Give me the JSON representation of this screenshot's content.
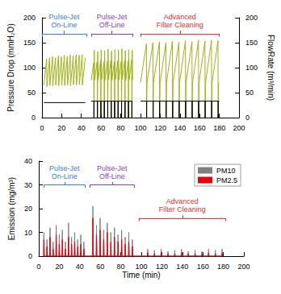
{
  "chart_data": [
    {
      "type": "line",
      "ylabel": "Pressure Drop (mmH₂O)",
      "y2label": "FlowRate (m³/min)",
      "xlim": [
        0,
        200
      ],
      "xticks": [
        0,
        20,
        40,
        60,
        80,
        100,
        120,
        140,
        160,
        180,
        200
      ],
      "ylim": [
        0,
        200
      ],
      "yticks": [
        0,
        50,
        100,
        150,
        200
      ],
      "y2lim": [
        0,
        200
      ],
      "y2ticks": [
        0,
        50,
        100,
        150,
        200
      ],
      "grid": false,
      "annotations": [
        {
          "text": "Pulse-Jet\nOn-Line",
          "x": [
            0,
            45
          ],
          "y": 168,
          "color": "#3b7dd8"
        },
        {
          "text": "Pulse-Jet\nOff-Line",
          "x": [
            50,
            92
          ],
          "y": 168,
          "color": "#8a3fb0"
        },
        {
          "text": "Advanced\nFilter Cleaning",
          "x": [
            100,
            180
          ],
          "y": 168,
          "color": "#e03030"
        }
      ],
      "series": [
        {
          "color": "#9fb21a",
          "marker": "none",
          "line_style": "solid",
          "x": [
            2,
            4.8,
            5,
            7.8,
            8,
            10.8,
            11,
            13.8,
            14,
            16.8,
            17,
            19.8,
            20,
            22.8,
            23,
            25.8,
            26,
            28.8,
            29,
            31.8,
            32,
            34.8,
            35,
            37.8,
            38,
            40.8,
            41,
            44,
            47,
            50,
            52.5,
            52.8,
            53.1,
            53.5,
            56,
            56.3,
            56.6,
            57,
            59.5,
            59.8,
            60.1,
            60.5,
            63,
            63.3,
            63.6,
            64,
            66.5,
            66.8,
            67.1,
            67.5,
            70,
            70.3,
            70.6,
            71,
            73.5,
            73.8,
            74.1,
            74.5,
            77,
            77.3,
            77.6,
            78,
            80.5,
            80.8,
            81.1,
            81.5,
            84,
            84.3,
            84.6,
            85,
            87.5,
            87.8,
            88.1,
            88.5,
            91,
            91.3,
            91.6,
            92,
            96,
            100,
            106,
            106.2,
            106.6,
            112.6,
            112.8,
            113.2,
            119.2,
            119.4,
            119.8,
            125.8,
            126,
            126.4,
            132.4,
            132.6,
            133,
            139,
            139.2,
            139.6,
            145.6,
            145.8,
            146.2,
            152.2,
            152.4,
            152.8,
            158.8,
            159,
            159.4,
            165.4,
            165.6,
            166,
            172,
            172.2,
            172.6,
            178.6,
            178.8,
            179.2
          ],
          "values": [
            65,
            118,
            62,
            120,
            64,
            122,
            63,
            120,
            65,
            124,
            64,
            122,
            65,
            125,
            64,
            123,
            65,
            125,
            64,
            124,
            66,
            126,
            65,
            125,
            66,
            126,
            65,
            120,
            null,
            75,
            110,
            0,
            135,
            75,
            112,
            0,
            132,
            75,
            114,
            0,
            136,
            76,
            112,
            0,
            134,
            75,
            113,
            0,
            137,
            76,
            115,
            0,
            133,
            75,
            112,
            0,
            136,
            76,
            114,
            0,
            135,
            75,
            113,
            0,
            138,
            76,
            115,
            0,
            134,
            75,
            114,
            0,
            136,
            76,
            116,
            0,
            135,
            75,
            null,
            70,
            148,
            0,
            70,
            150,
            0,
            70,
            152,
            0,
            70,
            150,
            0,
            70,
            153,
            0,
            70,
            151,
            0,
            70,
            154,
            0,
            70,
            152,
            0,
            70,
            155,
            0,
            70,
            153,
            0,
            70,
            155,
            0,
            70,
            154,
            0,
            70
          ]
        },
        {
          "color": "#000000",
          "marker": "none",
          "line_style": "solid",
          "axis": "y2",
          "x": [
            2,
            44,
            47,
            50,
            52.75,
            52.8,
            52.85,
            56.25,
            56.3,
            56.35,
            59.75,
            59.8,
            59.85,
            63.25,
            63.3,
            63.35,
            66.75,
            66.8,
            66.85,
            70.25,
            70.3,
            70.35,
            73.75,
            73.8,
            73.85,
            77.25,
            77.3,
            77.35,
            80.75,
            80.8,
            80.85,
            84.25,
            84.3,
            84.35,
            87.75,
            87.8,
            87.85,
            91.25,
            91.3,
            91.35,
            92,
            96,
            100,
            106.15,
            106.2,
            106.25,
            112.75,
            112.8,
            112.85,
            119.35,
            119.4,
            119.45,
            125.95,
            126,
            126.05,
            132.55,
            132.6,
            132.65,
            139.15,
            139.2,
            139.25,
            145.75,
            145.8,
            145.85,
            152.35,
            152.4,
            152.45,
            158.95,
            159,
            159.05,
            165.55,
            165.6,
            165.65,
            172.15,
            172.2,
            172.25,
            178.75,
            178.8,
            178.85,
            180
          ],
          "values": [
            30,
            30,
            null,
            33,
            33,
            0,
            33,
            33,
            0,
            33,
            33,
            0,
            33,
            33,
            0,
            33,
            33,
            0,
            33,
            33,
            0,
            33,
            33,
            0,
            33,
            33,
            0,
            33,
            33,
            0,
            33,
            33,
            0,
            33,
            33,
            0,
            33,
            33,
            0,
            33,
            33,
            null,
            33,
            33,
            0,
            33,
            33,
            0,
            33,
            33,
            0,
            33,
            33,
            0,
            33,
            33,
            0,
            33,
            33,
            0,
            33,
            33,
            0,
            33,
            33,
            0,
            33,
            33,
            0,
            33,
            33,
            0,
            33,
            33,
            0,
            33,
            33,
            0,
            33,
            33
          ]
        }
      ]
    },
    {
      "type": "line",
      "xlabel": "Time (min)",
      "ylabel": "Emission (mg/m³)",
      "xlim": [
        0,
        200
      ],
      "xticks": [
        0,
        20,
        40,
        60,
        80,
        100,
        120,
        140,
        160,
        180,
        200
      ],
      "ylim": [
        0,
        40
      ],
      "yticks": [
        0,
        10,
        20,
        30,
        40
      ],
      "grid": false,
      "legend": "upper right",
      "annotations": [
        {
          "text": "Pulse-Jet\nOn-Line",
          "x": [
            5,
            45
          ],
          "y": 30,
          "color": "#3b7dd8"
        },
        {
          "text": "Pulse-Jet\nOff-Line",
          "x": [
            50,
            93
          ],
          "y": 30,
          "color": "#8a3fb0"
        },
        {
          "text": "Advanced\nFilter Cleaning",
          "x": [
            98,
            182
          ],
          "y": 16,
          "color": "#e03030"
        }
      ],
      "x": [
        4.7,
        5,
        5.4,
        7.7,
        8,
        8.4,
        10.7,
        11,
        11.4,
        13.7,
        14,
        14.4,
        16.7,
        17,
        17.4,
        19.7,
        20,
        20.4,
        22.7,
        23,
        23.4,
        25.7,
        26,
        26.4,
        28.7,
        29,
        29.4,
        31.7,
        32,
        32.4,
        34.7,
        35,
        35.4,
        37.7,
        38,
        38.4,
        40.7,
        41,
        41.4,
        43.7,
        44,
        44.4,
        52.5,
        52.8,
        53.2,
        56,
        56.3,
        56.7,
        59.5,
        59.8,
        60.2,
        63,
        63.3,
        63.7,
        66.5,
        66.8,
        67.2,
        70,
        70.3,
        70.7,
        73.5,
        73.8,
        74.2,
        77,
        77.3,
        77.7,
        80.5,
        80.8,
        81.2,
        84,
        84.3,
        84.7,
        87.5,
        87.8,
        88.2,
        91,
        91.3,
        91.7,
        105.9,
        106.2,
        106.6,
        112.5,
        112.8,
        113.2,
        119.1,
        119.4,
        119.8,
        125.7,
        126,
        126.4,
        132.3,
        132.6,
        133,
        138.9,
        139.2,
        139.6,
        145.5,
        145.8,
        146.2,
        152.1,
        152.4,
        152.8,
        158.7,
        159,
        159.4,
        165.3,
        165.6,
        166,
        171.9,
        172.2,
        172.6,
        178.5,
        178.8,
        179.2
      ],
      "series": [
        {
          "name": "PM10",
          "color": "#808080",
          "marker": "none",
          "line_style": "solid",
          "values": [
            0,
            10,
            0,
            0,
            7,
            0,
            0,
            12,
            0,
            0,
            6,
            0,
            0,
            13,
            0,
            0,
            9,
            0,
            0,
            11,
            0,
            0,
            6,
            0,
            0,
            14,
            0,
            0,
            8,
            0,
            0,
            10,
            0,
            0,
            7,
            0,
            0,
            9,
            0,
            0,
            6,
            0,
            0,
            21,
            0,
            0,
            13,
            0,
            0,
            16,
            0,
            0,
            11,
            0,
            0,
            14,
            0,
            0,
            10,
            0,
            0,
            12,
            0,
            0,
            9,
            0,
            0,
            11,
            0,
            0,
            8,
            0,
            0,
            10,
            0,
            0,
            7,
            0,
            0,
            3,
            0,
            0,
            2.5,
            0,
            0,
            3,
            0,
            0,
            2,
            0,
            0,
            2.5,
            0,
            0,
            3,
            0,
            0,
            2,
            0,
            0,
            2.5,
            0,
            0,
            2,
            0,
            0,
            3,
            0,
            0,
            2.5,
            0,
            0,
            3,
            0
          ]
        },
        {
          "name": "PM2.5",
          "color": "#e8000b",
          "marker": "none",
          "line_style": "solid",
          "values": [
            0,
            7,
            0,
            0,
            4,
            0,
            0,
            8,
            0,
            0,
            3,
            0,
            0,
            9,
            0,
            0,
            5,
            0,
            0,
            7,
            0,
            0,
            3,
            0,
            0,
            8,
            0,
            0,
            5,
            0,
            0,
            6,
            0,
            0,
            4,
            0,
            0,
            5,
            0,
            0,
            3,
            0,
            0,
            16,
            0,
            0,
            9,
            0,
            0,
            11,
            0,
            0,
            7,
            0,
            0,
            10,
            0,
            0,
            6,
            0,
            0,
            8,
            0,
            0,
            6,
            0,
            0,
            7,
            0,
            0,
            5,
            0,
            0,
            6,
            0,
            0,
            4,
            0,
            0,
            1.5,
            0,
            0,
            1,
            0,
            0,
            1.5,
            0,
            0,
            1,
            0,
            0,
            1,
            0,
            0,
            1.5,
            0,
            0,
            1,
            0,
            0,
            1,
            0,
            0,
            0.8,
            0,
            0,
            1.5,
            0,
            0,
            1,
            0,
            0,
            1.2,
            0
          ]
        }
      ]
    }
  ]
}
